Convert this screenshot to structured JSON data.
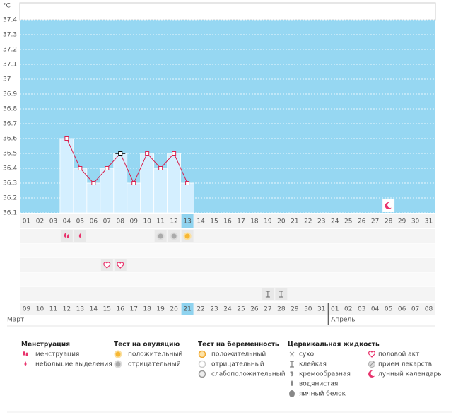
{
  "chart_data": {
    "type": "line",
    "y_unit": "°C",
    "categories": [
      "01",
      "02",
      "03",
      "04",
      "05",
      "06",
      "07",
      "08",
      "09",
      "10",
      "11",
      "12",
      "13",
      "14",
      "15",
      "16",
      "17",
      "18",
      "19",
      "20",
      "21",
      "22",
      "23",
      "24",
      "25",
      "26",
      "27",
      "28",
      "29",
      "30",
      "31"
    ],
    "dates": [
      "09",
      "10",
      "11",
      "12",
      "13",
      "14",
      "15",
      "16",
      "17",
      "18",
      "19",
      "20",
      "21",
      "22",
      "23",
      "24",
      "25",
      "26",
      "27",
      "28",
      "29",
      "30",
      "31",
      "01",
      "02",
      "03",
      "04",
      "05",
      "06",
      "07",
      "08"
    ],
    "weekend": [
      true,
      false,
      false,
      false,
      false,
      false,
      true,
      true,
      false,
      false,
      false,
      false,
      false,
      true,
      true,
      false,
      false,
      false,
      false,
      false,
      true,
      true,
      false,
      false,
      false,
      false,
      false,
      true,
      true,
      false,
      false
    ],
    "weekend_color": "#d6204e",
    "months": [
      "Март",
      "Апрель"
    ],
    "today": "13",
    "selected": "08",
    "values": [
      null,
      null,
      null,
      36.6,
      36.4,
      36.3,
      36.4,
      36.5,
      36.3,
      36.5,
      36.4,
      36.5,
      36.3,
      null,
      null,
      null,
      null,
      null,
      null,
      null,
      null,
      null,
      null,
      null,
      null,
      null,
      null,
      null,
      null,
      null,
      null
    ],
    "color": "#d6204e",
    "bar_color": "#d4efff",
    "background": "#96d7f2",
    "ylim": [
      36.1,
      37.4
    ],
    "yticks": [
      36.1,
      36.2,
      36.3,
      36.4,
      36.5,
      36.6,
      36.7,
      36.8,
      36.9,
      37,
      37.1,
      37.2,
      37.3,
      37.4
    ],
    "grid": true,
    "events": [
      {
        "day": "04",
        "icon": "menstruation"
      },
      {
        "day": "05",
        "icon": "spotting"
      },
      {
        "day": "11",
        "icon": "ovulation-negative"
      },
      {
        "day": "12",
        "icon": "ovulation-negative"
      },
      {
        "day": "13",
        "icon": "ovulation-positive"
      },
      {
        "day": "07",
        "icon": "intercourse"
      },
      {
        "day": "08",
        "icon": "intercourse"
      },
      {
        "day": "19",
        "icon": "mucus-sticky"
      },
      {
        "day": "20",
        "icon": "mucus-sticky"
      },
      {
        "day": "28",
        "icon": "lunar"
      }
    ],
    "legend": [
      {
        "title": "Менструация",
        "items": [
          {
            "icon": "menstruation",
            "label": "менструация"
          },
          {
            "icon": "spotting",
            "label": "небольшие выделения"
          }
        ]
      },
      {
        "title": "Тест на овуляцию",
        "items": [
          {
            "icon": "ovulation-positive",
            "label": "положительный"
          },
          {
            "icon": "ovulation-negative",
            "label": "отрицательный"
          }
        ]
      },
      {
        "title": "Тест на беременность",
        "items": [
          {
            "icon": "pregnancy-positive",
            "label": "положительный"
          },
          {
            "icon": "pregnancy-negative",
            "label": "отрицательный"
          },
          {
            "icon": "pregnancy-weak",
            "label": "слабоположительный"
          }
        ]
      },
      {
        "title": "Цервикальная жидкость",
        "items": [
          {
            "icon": "mucus-dry",
            "label": "сухо"
          },
          {
            "icon": "mucus-sticky",
            "label": "клейкая"
          },
          {
            "icon": "mucus-creamy",
            "label": "кремообразная"
          },
          {
            "icon": "mucus-watery",
            "label": "водянистая"
          },
          {
            "icon": "mucus-eggwhite",
            "label": "яичный белок"
          }
        ]
      },
      {
        "items": [
          {
            "icon": "intercourse",
            "label": "половой акт"
          },
          {
            "icon": "medicine",
            "label": "прием лекарств"
          },
          {
            "icon": "lunar",
            "label": "лунный календарь"
          }
        ]
      }
    ]
  }
}
